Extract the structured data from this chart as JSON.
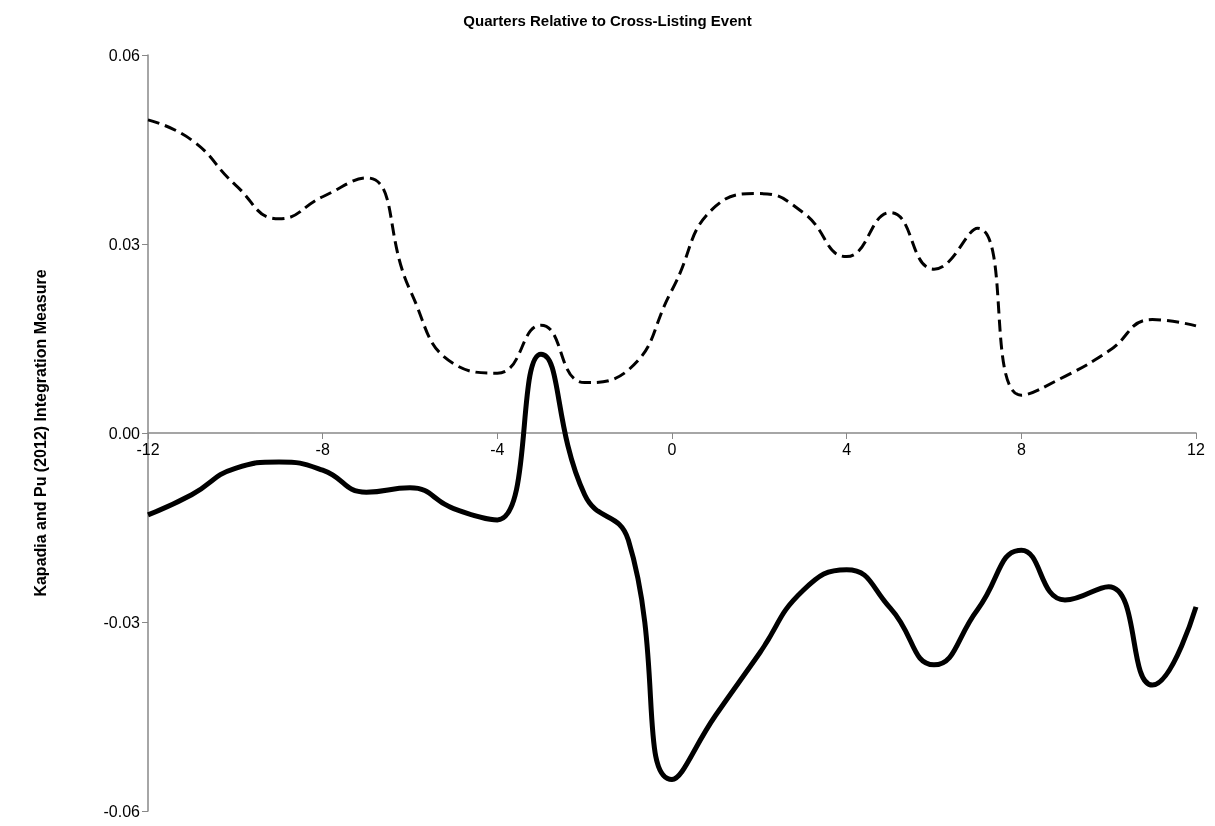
{
  "chart_data": {
    "type": "line",
    "xlabel": "Quarters Relative to Cross-Listing Event",
    "ylabel": "Kapadia and Pu (2012) Integration Measure",
    "x": [
      -12,
      -11,
      -10,
      -9,
      -8,
      -7,
      -6,
      -5,
      -4,
      -3,
      -2,
      -1,
      0,
      1,
      2,
      3,
      4,
      5,
      6,
      7,
      8,
      9,
      10,
      11,
      12
    ],
    "series": [
      {
        "color": "#000000",
        "line_style": "dashed",
        "values": [
          0.0497,
          0.0465,
          0.0394,
          0.034,
          0.0375,
          0.0405,
          0.0227,
          0.011,
          0.0095,
          0.0171,
          0.008,
          0.01,
          0.0227,
          0.036,
          0.038,
          0.035,
          0.028,
          0.035,
          0.026,
          0.0325,
          0.006,
          0.009,
          0.013,
          0.018,
          0.017
        ]
      },
      {
        "color": "#000000",
        "line_style": "solid",
        "values": [
          -0.013,
          -0.0098,
          -0.0056,
          -0.0046,
          -0.0059,
          -0.0094,
          -0.0087,
          -0.012,
          -0.0138,
          0.0125,
          -0.0098,
          -0.017,
          -0.055,
          -0.0448,
          -0.035,
          -0.025,
          -0.0217,
          -0.0278,
          -0.0368,
          -0.028,
          -0.0186,
          -0.0265,
          -0.0244,
          -0.04,
          -0.0276
        ]
      }
    ],
    "xlim": [
      -12,
      12
    ],
    "xticks": [
      -12,
      -8,
      -4,
      0,
      4,
      8,
      12
    ],
    "ylim": [
      -0.06,
      0.06
    ],
    "yticks": [
      {
        "value": -0.06,
        "label": "-0.06"
      },
      {
        "value": -0.03,
        "label": "-0.03"
      },
      {
        "value": 0,
        "label": "0.00"
      },
      {
        "value": 0.03,
        "label": "0.03"
      },
      {
        "value": 0.06,
        "label": "0.06"
      }
    ],
    "grid": false,
    "marker": "none"
  }
}
